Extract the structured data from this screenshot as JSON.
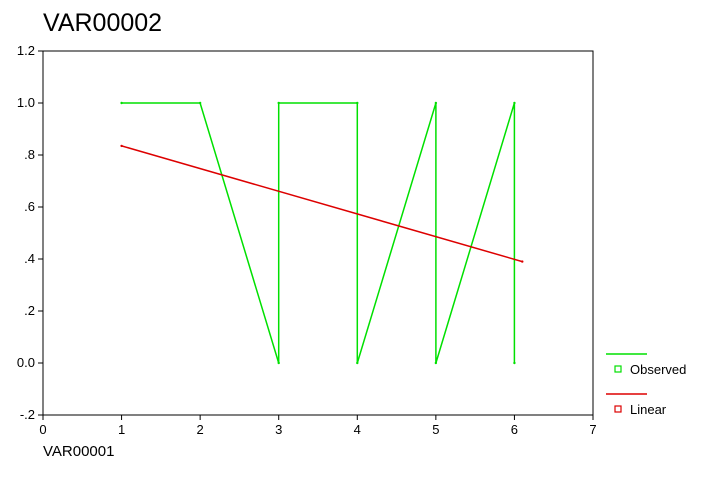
{
  "chart_data": {
    "type": "line",
    "title": "VAR00002",
    "xlabel": "VAR00001",
    "ylabel": "",
    "xlim": [
      0,
      7
    ],
    "ylim": [
      -0.2,
      1.2
    ],
    "x_ticks": [
      0,
      1,
      2,
      3,
      4,
      5,
      6,
      7
    ],
    "x_tick_labels": [
      "0",
      "1",
      "2",
      "3",
      "4",
      "5",
      "6",
      "7"
    ],
    "y_ticks": [
      -0.2,
      0,
      0.2,
      0.4,
      0.6,
      0.8,
      1.0,
      1.2
    ],
    "y_tick_labels": [
      "-.2",
      "0.0",
      ".2",
      ".4",
      ".6",
      ".8",
      "1.0",
      "1.2"
    ],
    "grid": false,
    "legend_position": "right",
    "series": [
      {
        "name": "Observed",
        "color": "#00e000",
        "x": [
          1,
          2,
          3,
          3,
          4,
          4,
          5,
          5,
          6,
          6
        ],
        "y": [
          1,
          1,
          0,
          1,
          1,
          0,
          1,
          0,
          1,
          0
        ]
      },
      {
        "name": "Linear",
        "color": "#dd0000",
        "x": [
          1,
          6.1
        ],
        "y": [
          0.835,
          0.39
        ]
      }
    ]
  }
}
